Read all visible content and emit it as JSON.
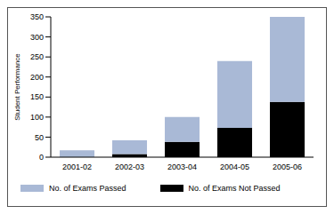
{
  "chart_data": {
    "type": "bar",
    "stacked": true,
    "y_label": "Student Performance",
    "categories": [
      "2001-02",
      "2002-03",
      "2003-04",
      "2004-05",
      "2005-06"
    ],
    "series": [
      {
        "name": "No. of Exams Passed",
        "color": "#a9b9d6",
        "values": [
          17,
          34,
          62,
          167,
          212
        ]
      },
      {
        "name": "No. of Exams Not Passed",
        "color": "#000000",
        "values": [
          0,
          8,
          38,
          73,
          138
        ]
      }
    ],
    "ylim": [
      0,
      350
    ],
    "yticks": [
      0,
      50,
      100,
      150,
      200,
      250,
      300,
      350
    ],
    "grid": false,
    "legend": "bottom"
  }
}
